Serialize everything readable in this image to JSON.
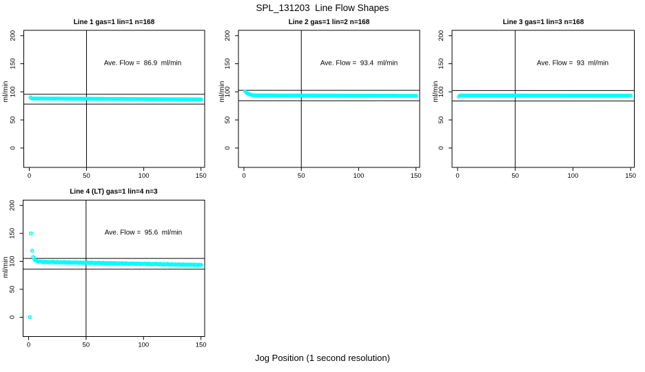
{
  "chart_data": {
    "type": "scatter",
    "title": "SPL_131203  Line Flow Shapes",
    "xlabel": "Jog Position (1 second resolution)",
    "ylabel": "ml/min",
    "point_color": "#00ffff",
    "axis_color": "#000000",
    "background": "#ffffff",
    "grid": false,
    "xlim": [
      -4.8,
      153.2
    ],
    "ylim": [
      -34.5,
      209.5
    ],
    "x_ticks": [
      0,
      50,
      100,
      150
    ],
    "y_ticks": [
      0,
      50,
      100,
      150,
      200
    ],
    "vline_x": 50,
    "plots": [
      {
        "title": "Line 1 gas=1 lin=1 n=168",
        "annotation": "Ave. Flow =  86.9  ml/min",
        "ave_flow": 86.9,
        "hlines": [
          95.6,
          78.2
        ],
        "x_start": 1,
        "x_step": 1,
        "y": [
          90.0,
          88.2,
          88.2,
          88.2,
          88.2,
          88.2,
          88.2,
          88.2,
          88.2,
          88.2,
          88.1,
          88.1,
          88.1,
          88.1,
          88.1,
          88.1,
          88.1,
          88.1,
          88.1,
          88.0,
          88.0,
          88.0,
          88.0,
          88.0,
          88.0,
          88.0,
          88.0,
          88.0,
          87.9,
          87.9,
          87.9,
          87.9,
          87.9,
          87.9,
          87.9,
          87.9,
          87.9,
          87.8,
          87.8,
          87.8,
          87.8,
          87.8,
          87.8,
          87.8,
          87.8,
          87.8,
          87.7,
          87.7,
          87.7,
          87.7,
          87.7,
          87.7,
          87.7,
          87.7,
          87.7,
          87.6,
          87.6,
          87.6,
          87.6,
          87.6,
          87.6,
          87.6,
          87.6,
          87.6,
          87.5,
          87.5,
          87.5,
          87.5,
          87.5,
          87.5,
          87.5,
          87.5,
          87.5,
          87.4,
          87.4,
          87.4,
          87.4,
          87.4,
          87.4,
          87.4,
          87.4,
          87.4,
          87.3,
          87.3,
          87.3,
          87.3,
          87.3,
          87.3,
          87.3,
          87.3,
          87.3,
          87.2,
          87.2,
          87.2,
          87.2,
          87.2,
          87.2,
          87.2,
          87.2,
          87.2,
          87.1,
          87.1,
          87.1,
          87.1,
          87.1,
          87.1,
          87.1,
          87.1,
          87.1,
          87.0,
          87.0,
          87.0,
          87.0,
          87.0,
          87.0,
          87.0,
          87.0,
          87.0,
          86.9,
          86.9,
          86.9,
          86.9,
          86.9,
          86.9,
          86.9,
          86.9,
          86.9,
          86.8,
          86.8,
          86.8,
          86.8,
          86.8,
          86.8,
          86.8,
          86.8,
          86.8,
          86.7,
          86.7,
          86.7,
          86.7,
          86.7,
          86.7,
          86.7,
          86.7,
          86.7,
          86.6,
          86.6,
          86.6,
          86.6,
          86.6
        ]
      },
      {
        "title": "Line 2 gas=1 lin=2 n=168",
        "annotation": "Ave. Flow =  93.4  ml/min",
        "ave_flow": 93.4,
        "hlines": [
          102.7,
          84.1
        ],
        "x_start": 1,
        "x_step": 1,
        "y": [
          101.0,
          98.8,
          97.2,
          96.2,
          95.4,
          94.8,
          94.4,
          94.1,
          93.9,
          93.8,
          93.7,
          93.7,
          93.7,
          93.7,
          93.7,
          93.7,
          93.7,
          93.7,
          93.7,
          93.7,
          93.7,
          93.7,
          93.7,
          93.7,
          93.7,
          93.7,
          93.7,
          93.7,
          93.6,
          93.6,
          93.6,
          93.6,
          93.6,
          93.6,
          93.6,
          93.6,
          93.6,
          93.6,
          93.6,
          93.6,
          93.6,
          93.6,
          93.6,
          93.6,
          93.6,
          93.5,
          93.5,
          93.5,
          93.5,
          93.5,
          93.5,
          93.5,
          93.5,
          93.5,
          93.5,
          93.5,
          93.5,
          93.5,
          93.5,
          93.5,
          93.5,
          93.5,
          93.5,
          93.4,
          93.4,
          93.4,
          93.4,
          93.4,
          93.4,
          93.4,
          93.4,
          93.4,
          93.4,
          93.4,
          93.4,
          93.4,
          93.4,
          93.4,
          93.4,
          93.4,
          93.3,
          93.3,
          93.3,
          93.3,
          93.3,
          93.3,
          93.3,
          93.3,
          93.3,
          93.3,
          93.3,
          93.3,
          93.3,
          93.3,
          93.3,
          93.3,
          93.3,
          93.3,
          93.2,
          93.2,
          93.2,
          93.2,
          93.2,
          93.2,
          93.2,
          93.2,
          93.2,
          93.2,
          93.2,
          93.2,
          93.2,
          93.2,
          93.2,
          93.2,
          93.2,
          93.1,
          93.1,
          93.1,
          93.1,
          93.1,
          93.1,
          93.1,
          93.1,
          93.1,
          93.1,
          93.1,
          93.1,
          93.1,
          93.1,
          93.1,
          93.1,
          93.1,
          93.1,
          93.0,
          93.0,
          93.0,
          93.0,
          93.0,
          93.0,
          93.0,
          93.0,
          93.0,
          93.0,
          93.0,
          93.0,
          93.0,
          93.0,
          93.0,
          93.0,
          93.0
        ]
      },
      {
        "title": "Line 3 gas=1 lin=3 n=168",
        "annotation": "Ave. Flow =  93  ml/min",
        "ave_flow": 93,
        "hlines": [
          102.3,
          83.7
        ],
        "x_start": 1,
        "x_step": 1,
        "y": [
          91.5,
          93.3,
          93.7,
          93.6,
          93.6,
          93.6,
          93.6,
          93.6,
          93.6,
          93.6,
          93.6,
          93.6,
          93.6,
          93.6,
          93.6,
          93.6,
          93.6,
          93.6,
          93.6,
          93.6,
          93.6,
          93.6,
          93.6,
          93.6,
          93.6,
          93.6,
          93.6,
          93.6,
          93.6,
          93.6,
          93.6,
          93.6,
          93.5,
          93.5,
          93.5,
          93.5,
          93.5,
          93.5,
          93.5,
          93.5,
          93.5,
          93.5,
          93.5,
          93.5,
          93.5,
          93.5,
          93.5,
          93.5,
          93.5,
          93.5,
          93.5,
          93.5,
          93.5,
          93.5,
          93.5,
          93.5,
          93.5,
          93.5,
          93.5,
          93.5,
          93.5,
          93.4,
          93.4,
          93.4,
          93.4,
          93.4,
          93.4,
          93.4,
          93.4,
          93.4,
          93.4,
          93.4,
          93.4,
          93.4,
          93.4,
          93.4,
          93.4,
          93.4,
          93.4,
          93.4,
          93.4,
          93.4,
          93.4,
          93.4,
          93.4,
          93.4,
          93.4,
          93.4,
          93.4,
          93.4,
          93.3,
          93.3,
          93.3,
          93.3,
          93.3,
          93.3,
          93.3,
          93.3,
          93.3,
          93.3,
          93.3,
          93.3,
          93.3,
          93.3,
          93.3,
          93.3,
          93.3,
          93.3,
          93.3,
          93.3,
          93.3,
          93.3,
          93.3,
          93.3,
          93.3,
          93.3,
          93.3,
          93.3,
          93.3,
          93.2,
          93.2,
          93.2,
          93.2,
          93.2,
          93.2,
          93.2,
          93.2,
          93.2,
          93.2,
          93.2,
          93.2,
          93.2,
          93.2,
          93.2,
          93.2,
          93.2,
          93.2,
          93.2,
          93.2,
          93.2,
          93.2,
          93.2,
          93.2,
          93.2,
          93.2,
          93.2,
          93.2,
          93.2,
          93.2,
          93.2
        ]
      },
      {
        "title": "Line 4 (LT) gas=1 lin=4 n=3",
        "annotation": "Ave. Flow =  95.6  ml/min",
        "ave_flow": 95.6,
        "hlines": [
          105.2,
          86.0
        ],
        "x_start": 1,
        "x_step": 1,
        "y": [
          0.0,
          150.0,
          119.0,
          107.5,
          103.5,
          101.5,
          100.5,
          100.0,
          99.5,
          99.8,
          99.8,
          98.5,
          99.3,
          98.2,
          99.6,
          98.8,
          97.9,
          99.1,
          98.4,
          99.0,
          99.4,
          98.1,
          98.9,
          97.8,
          99.2,
          98.5,
          97.6,
          98.8,
          98.0,
          98.6,
          99.0,
          97.7,
          98.5,
          97.4,
          98.8,
          98.1,
          97.2,
          98.4,
          97.6,
          98.2,
          98.6,
          97.3,
          98.1,
          97.0,
          98.4,
          97.7,
          96.8,
          98.0,
          97.2,
          97.8,
          98.2,
          96.9,
          97.7,
          96.6,
          98.0,
          97.3,
          96.4,
          97.6,
          96.8,
          97.4,
          97.8,
          96.5,
          97.3,
          96.2,
          97.6,
          96.9,
          96.0,
          97.2,
          96.4,
          97.0,
          97.4,
          96.1,
          96.9,
          95.8,
          97.2,
          96.5,
          95.6,
          96.8,
          96.0,
          96.6,
          97.0,
          95.7,
          96.5,
          95.4,
          96.8,
          96.1,
          95.2,
          96.4,
          95.6,
          96.2,
          96.6,
          95.3,
          96.1,
          95.0,
          96.4,
          95.7,
          94.8,
          96.0,
          95.2,
          95.8,
          96.2,
          94.9,
          95.7,
          94.6,
          96.0,
          95.3,
          94.4,
          95.6,
          94.8,
          95.4,
          95.8,
          94.5,
          95.3,
          94.2,
          95.6,
          94.9,
          94.0,
          95.2,
          94.4,
          95.0,
          95.4,
          94.1,
          94.9,
          93.8,
          95.2,
          94.5,
          93.6,
          94.8,
          94.0,
          94.6,
          95.0,
          93.7,
          94.5,
          93.4,
          94.8,
          94.1,
          93.2,
          94.4,
          93.6,
          94.2,
          94.6,
          93.3,
          94.1,
          93.0,
          94.4,
          93.7,
          92.8,
          94.0,
          93.2,
          93.8
        ]
      }
    ]
  }
}
